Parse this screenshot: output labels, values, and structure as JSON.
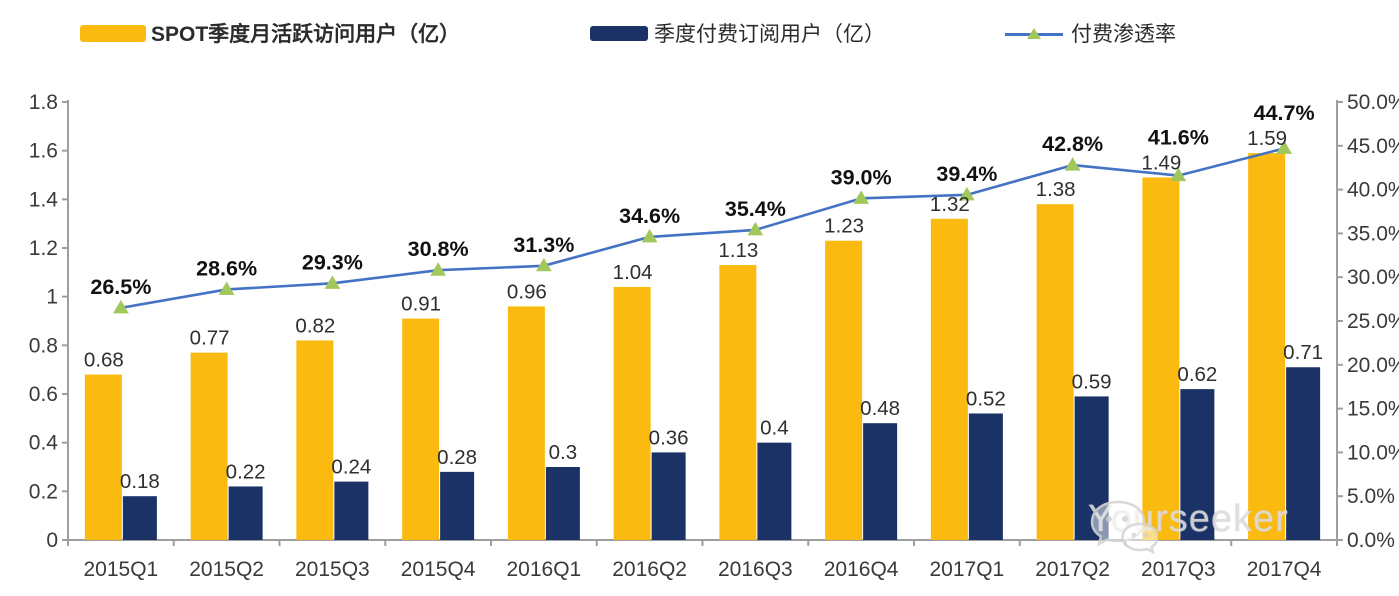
{
  "legend": {
    "items": [
      {
        "id": "mau",
        "label": "SPOT季度月活跃访问用户（亿）",
        "color": "#FBBA10",
        "type": "bar"
      },
      {
        "id": "subs",
        "label": "季度付费订阅用户（亿）",
        "color": "#1A3266",
        "type": "bar"
      },
      {
        "id": "rate",
        "label": "付费渗透率",
        "color": "#4472C4",
        "marker_color": "#A2C75B",
        "type": "line"
      }
    ]
  },
  "watermark": {
    "text": "Yourseeker",
    "icon": "wechat-icon"
  },
  "colors": {
    "bar_mau": "#FBBA10",
    "bar_subs": "#1A3266",
    "line": "#4472C4",
    "marker": "#A2C75B",
    "axis": "#9E9E9E",
    "axis_text": "#3A3A3A",
    "value_text": "#2F2F2F",
    "pct_text": "#111111"
  },
  "chart_data": {
    "type": "bar",
    "subtype": "grouped-bars-with-line",
    "categories": [
      "2015Q1",
      "2015Q2",
      "2015Q3",
      "2015Q4",
      "2016Q1",
      "2016Q2",
      "2016Q3",
      "2016Q4",
      "2017Q1",
      "2017Q2",
      "2017Q3",
      "2017Q4"
    ],
    "series": [
      {
        "name": "SPOT季度月活跃访问用户（亿）",
        "type": "bar",
        "axis": "left",
        "values": [
          0.68,
          0.77,
          0.82,
          0.91,
          0.96,
          1.04,
          1.13,
          1.23,
          1.32,
          1.38,
          1.49,
          1.59
        ],
        "labels": [
          "0.68",
          "0.77",
          "0.82",
          "0.91",
          "0.96",
          "1.04",
          "1.13",
          "1.23",
          "1.32",
          "1.38",
          "1.49",
          "1.59"
        ]
      },
      {
        "name": "季度付费订阅用户（亿）",
        "type": "bar",
        "axis": "left",
        "values": [
          0.18,
          0.22,
          0.24,
          0.28,
          0.3,
          0.36,
          0.4,
          0.48,
          0.52,
          0.59,
          0.62,
          0.71
        ],
        "labels": [
          "0.18",
          "0.22",
          "0.24",
          "0.28",
          "0.3",
          "0.36",
          "0.4",
          "0.48",
          "0.52",
          "0.59",
          "0.62",
          "0.71"
        ]
      },
      {
        "name": "付费渗透率",
        "type": "line",
        "axis": "right",
        "values": [
          26.5,
          28.6,
          29.3,
          30.8,
          31.3,
          34.6,
          35.4,
          39.0,
          39.4,
          42.8,
          41.6,
          44.7
        ],
        "labels": [
          "26.5%",
          "28.6%",
          "29.3%",
          "30.8%",
          "31.3%",
          "34.6%",
          "35.4%",
          "39.0%",
          "39.4%",
          "42.8%",
          "41.6%",
          "44.7%"
        ]
      }
    ],
    "left_axis": {
      "min": 0,
      "max": 1.8,
      "step": 0.2,
      "ticks": [
        "0",
        "0.2",
        "0.4",
        "0.6",
        "0.8",
        "1",
        "1.2",
        "1.4",
        "1.6",
        "1.8"
      ]
    },
    "right_axis": {
      "min": 0,
      "max": 50,
      "step": 5,
      "ticks": [
        "0.0%",
        "5.0%",
        "10.0%",
        "15.0%",
        "20.0%",
        "25.0%",
        "30.0%",
        "35.0%",
        "40.0%",
        "45.0%",
        "50.0%"
      ]
    },
    "grid": false,
    "legend_position": "top"
  }
}
